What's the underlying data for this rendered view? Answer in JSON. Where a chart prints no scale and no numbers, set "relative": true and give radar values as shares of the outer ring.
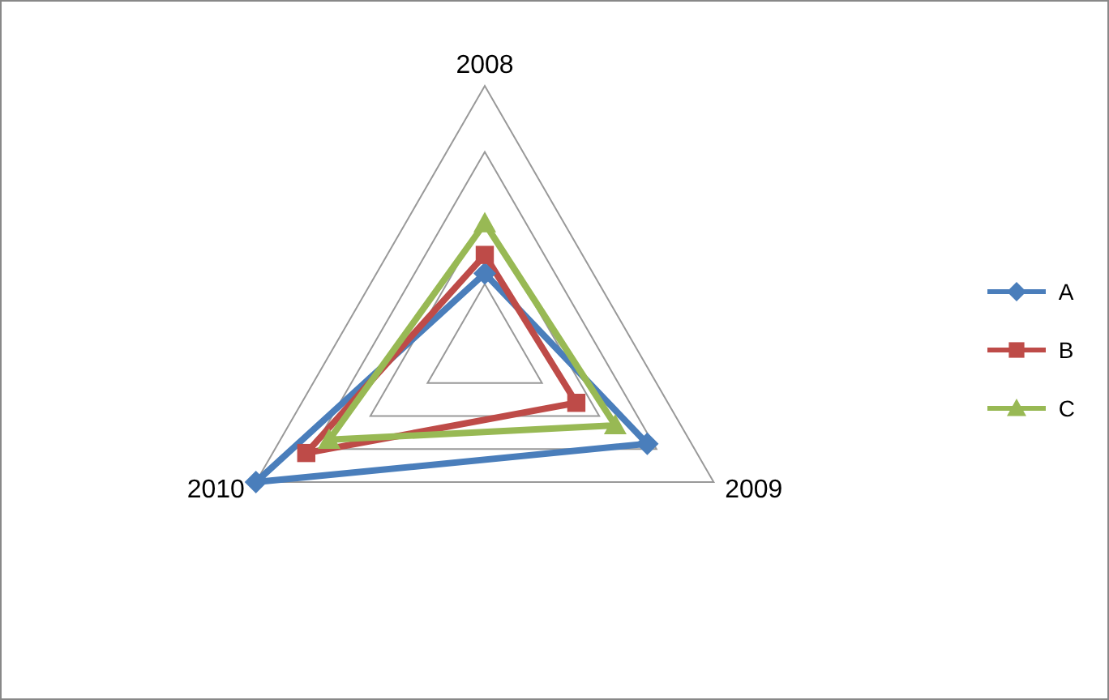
{
  "chart_data": {
    "type": "radar",
    "relative": true,
    "categories": [
      "2008",
      "2009",
      "2010"
    ],
    "grid": true,
    "legend": "right",
    "series": [
      {
        "name": "A",
        "color": "#4a7ebb",
        "marker": "diamond",
        "values": [
          0.29,
          0.71,
          1.0
        ]
      },
      {
        "name": "B",
        "color": "#be4b48",
        "marker": "square",
        "values": [
          0.36,
          0.4,
          0.78
        ]
      },
      {
        "name": "C",
        "color": "#98b954",
        "marker": "triangle",
        "values": [
          0.48,
          0.57,
          0.68
        ]
      }
    ]
  }
}
